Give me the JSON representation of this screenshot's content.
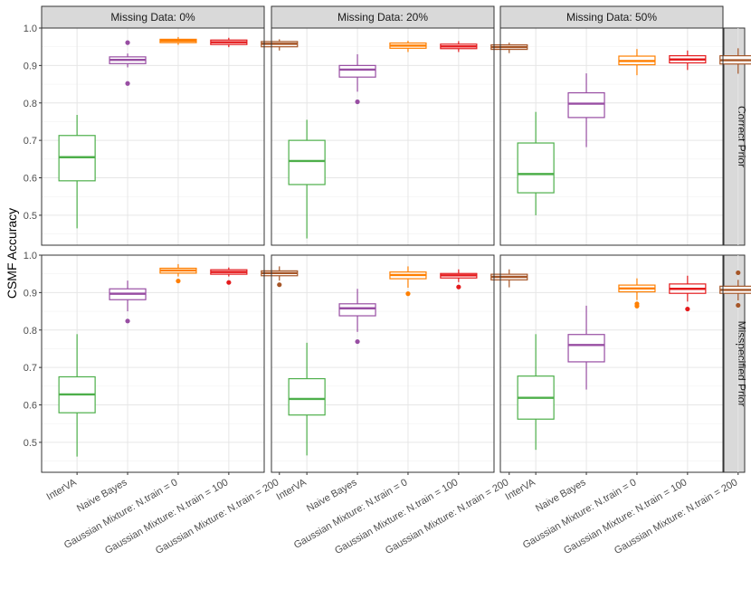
{
  "chart_data": {
    "type": "box",
    "ylabel": "CSMF Accuracy",
    "ylim": [
      0.42,
      1.0
    ],
    "yticks": [
      "0.5",
      "0.6",
      "0.7",
      "0.8",
      "0.9",
      "1.0"
    ],
    "categories": [
      "InterVA",
      "Naive Bayes",
      "Gaussian Mixture: N.train = 0",
      "Gaussian Mixture: N.train = 100",
      "Gaussian Mixture: N.train = 200"
    ],
    "colors": [
      "#4daf4a",
      "#984ea3",
      "#ff7f00",
      "#e41a1c",
      "#a65628"
    ],
    "column_facets": [
      "Missing Data: 0%",
      "Missing Data: 20%",
      "Missing Data: 50%"
    ],
    "row_facets": [
      "Correct Prior",
      "Misspecified Prior"
    ],
    "panels": [
      {
        "row": 0,
        "col": 0,
        "boxes": [
          {
            "low": 0.465,
            "q1": 0.592,
            "median": 0.655,
            "q3": 0.713,
            "high": 0.768,
            "outliers": []
          },
          {
            "low": 0.895,
            "q1": 0.905,
            "median": 0.915,
            "q3": 0.923,
            "high": 0.932,
            "outliers": [
              0.852,
              0.961
            ]
          },
          {
            "low": 0.955,
            "q1": 0.961,
            "median": 0.966,
            "q3": 0.97,
            "high": 0.976,
            "outliers": []
          },
          {
            "low": 0.949,
            "q1": 0.956,
            "median": 0.962,
            "q3": 0.968,
            "high": 0.974,
            "outliers": []
          },
          {
            "low": 0.94,
            "q1": 0.95,
            "median": 0.958,
            "q3": 0.964,
            "high": 0.97,
            "outliers": []
          }
        ]
      },
      {
        "row": 0,
        "col": 1,
        "boxes": [
          {
            "low": 0.438,
            "q1": 0.582,
            "median": 0.645,
            "q3": 0.7,
            "high": 0.755,
            "outliers": []
          },
          {
            "low": 0.83,
            "q1": 0.869,
            "median": 0.889,
            "q3": 0.9,
            "high": 0.93,
            "outliers": [
              0.803
            ]
          },
          {
            "low": 0.936,
            "q1": 0.946,
            "median": 0.953,
            "q3": 0.96,
            "high": 0.966,
            "outliers": []
          },
          {
            "low": 0.936,
            "q1": 0.945,
            "median": 0.951,
            "q3": 0.957,
            "high": 0.965,
            "outliers": []
          },
          {
            "low": 0.933,
            "q1": 0.943,
            "median": 0.949,
            "q3": 0.955,
            "high": 0.961,
            "outliers": []
          }
        ]
      },
      {
        "row": 0,
        "col": 2,
        "boxes": [
          {
            "low": 0.5,
            "q1": 0.56,
            "median": 0.61,
            "q3": 0.693,
            "high": 0.776,
            "outliers": []
          },
          {
            "low": 0.682,
            "q1": 0.761,
            "median": 0.798,
            "q3": 0.827,
            "high": 0.879,
            "outliers": []
          },
          {
            "low": 0.874,
            "q1": 0.902,
            "median": 0.912,
            "q3": 0.925,
            "high": 0.944,
            "outliers": []
          },
          {
            "low": 0.888,
            "q1": 0.907,
            "median": 0.916,
            "q3": 0.926,
            "high": 0.94,
            "outliers": []
          },
          {
            "low": 0.878,
            "q1": 0.904,
            "median": 0.914,
            "q3": 0.926,
            "high": 0.946,
            "outliers": []
          }
        ]
      },
      {
        "row": 1,
        "col": 0,
        "boxes": [
          {
            "low": 0.462,
            "q1": 0.579,
            "median": 0.628,
            "q3": 0.675,
            "high": 0.789,
            "outliers": []
          },
          {
            "low": 0.85,
            "q1": 0.881,
            "median": 0.897,
            "q3": 0.91,
            "high": 0.932,
            "outliers": [
              0.824
            ]
          },
          {
            "low": 0.943,
            "q1": 0.952,
            "median": 0.959,
            "q3": 0.965,
            "high": 0.976,
            "outliers": [
              0.931
            ]
          },
          {
            "low": 0.943,
            "q1": 0.949,
            "median": 0.955,
            "q3": 0.961,
            "high": 0.967,
            "outliers": [
              0.927
            ]
          },
          {
            "low": 0.932,
            "q1": 0.945,
            "median": 0.952,
            "q3": 0.958,
            "high": 0.97,
            "outliers": [
              0.921
            ]
          }
        ]
      },
      {
        "row": 1,
        "col": 1,
        "boxes": [
          {
            "low": 0.465,
            "q1": 0.573,
            "median": 0.616,
            "q3": 0.67,
            "high": 0.766,
            "outliers": []
          },
          {
            "low": 0.795,
            "q1": 0.838,
            "median": 0.858,
            "q3": 0.87,
            "high": 0.91,
            "outliers": [
              0.769
            ]
          },
          {
            "low": 0.913,
            "q1": 0.937,
            "median": 0.947,
            "q3": 0.955,
            "high": 0.97,
            "outliers": [
              0.897
            ]
          },
          {
            "low": 0.928,
            "q1": 0.939,
            "median": 0.946,
            "q3": 0.951,
            "high": 0.962,
            "outliers": [
              0.915
            ]
          },
          {
            "low": 0.914,
            "q1": 0.934,
            "median": 0.942,
            "q3": 0.949,
            "high": 0.962,
            "outliers": []
          }
        ]
      },
      {
        "row": 1,
        "col": 2,
        "boxes": [
          {
            "low": 0.48,
            "q1": 0.562,
            "median": 0.619,
            "q3": 0.677,
            "high": 0.789,
            "outliers": []
          },
          {
            "low": 0.641,
            "q1": 0.715,
            "median": 0.76,
            "q3": 0.788,
            "high": 0.865,
            "outliers": []
          },
          {
            "low": 0.88,
            "q1": 0.902,
            "median": 0.911,
            "q3": 0.92,
            "high": 0.938,
            "outliers": [
              0.864,
              0.87
            ]
          },
          {
            "low": 0.876,
            "q1": 0.898,
            "median": 0.91,
            "q3": 0.923,
            "high": 0.945,
            "outliers": [
              0.856
            ]
          },
          {
            "low": 0.879,
            "q1": 0.898,
            "median": 0.907,
            "q3": 0.917,
            "high": 0.934,
            "outliers": [
              0.953,
              0.866
            ]
          }
        ]
      }
    ]
  }
}
